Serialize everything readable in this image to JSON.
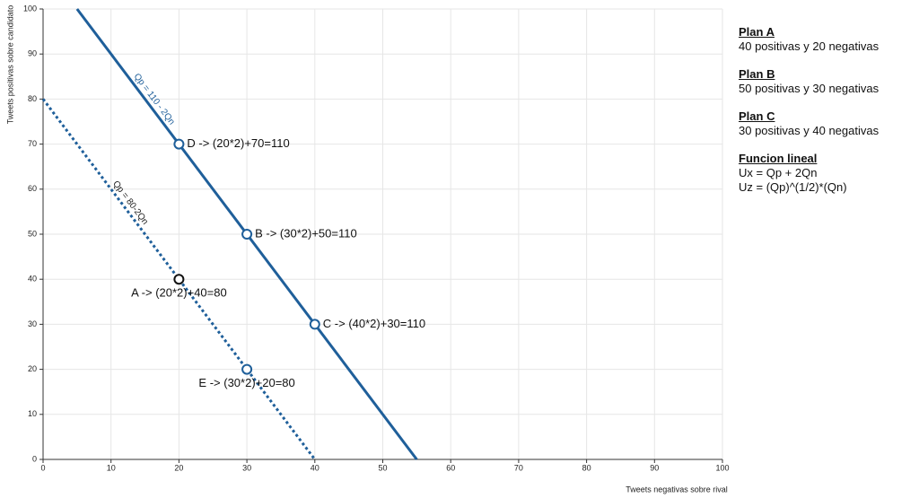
{
  "chart_data": {
    "type": "line",
    "xlabel": "Tweets negativas sobre rival",
    "ylabel": "Tweets positivas sobre candidato",
    "xlim": [
      0,
      100
    ],
    "xticks": [
      0,
      10,
      20,
      30,
      40,
      50,
      60,
      70,
      80,
      90,
      100
    ],
    "ylim": [
      0,
      100
    ],
    "yticks": [
      0,
      10,
      20,
      30,
      40,
      50,
      60,
      70,
      80,
      90,
      100
    ],
    "grid": true,
    "series": [
      {
        "name": "Qp = 110 - 2Qn",
        "color": "#1f5f9a",
        "style": "solid",
        "x": [
          5,
          55
        ],
        "values": [
          100,
          0
        ]
      },
      {
        "name": "Qp = 80-2Qn",
        "color": "#1f5f9a",
        "style": "dotted",
        "x": [
          0,
          40
        ],
        "values": [
          80,
          0
        ]
      }
    ],
    "points": [
      {
        "label": "D -> (20*2)+70=110",
        "x": 20,
        "y": 70,
        "color": "#1f5f9a"
      },
      {
        "label": "B -> (30*2)+50=110",
        "x": 30,
        "y": 50,
        "color": "#1f5f9a"
      },
      {
        "label": "C -> (40*2)+30=110",
        "x": 40,
        "y": 30,
        "color": "#1f5f9a"
      },
      {
        "label": "A -> (20*2)+40=80",
        "x": 20,
        "y": 40,
        "color": "#111111"
      },
      {
        "label": "E -> (30*2)+20=80",
        "x": 30,
        "y": 20,
        "color": "#1f5f9a"
      }
    ]
  },
  "side_panel": [
    {
      "title": "Plan A",
      "lines": [
        "40 positivas y 20 negativas"
      ]
    },
    {
      "title": "Plan B",
      "lines": [
        "50 positivas y 30 negativas"
      ]
    },
    {
      "title": "Plan C",
      "lines": [
        "30 positivas y 40 negativas"
      ]
    },
    {
      "title": "Funcion lineal",
      "lines": [
        "Ux = Qp + 2Qn",
        "Uz = (Qp)^(1/2)*(Qn)"
      ]
    }
  ]
}
